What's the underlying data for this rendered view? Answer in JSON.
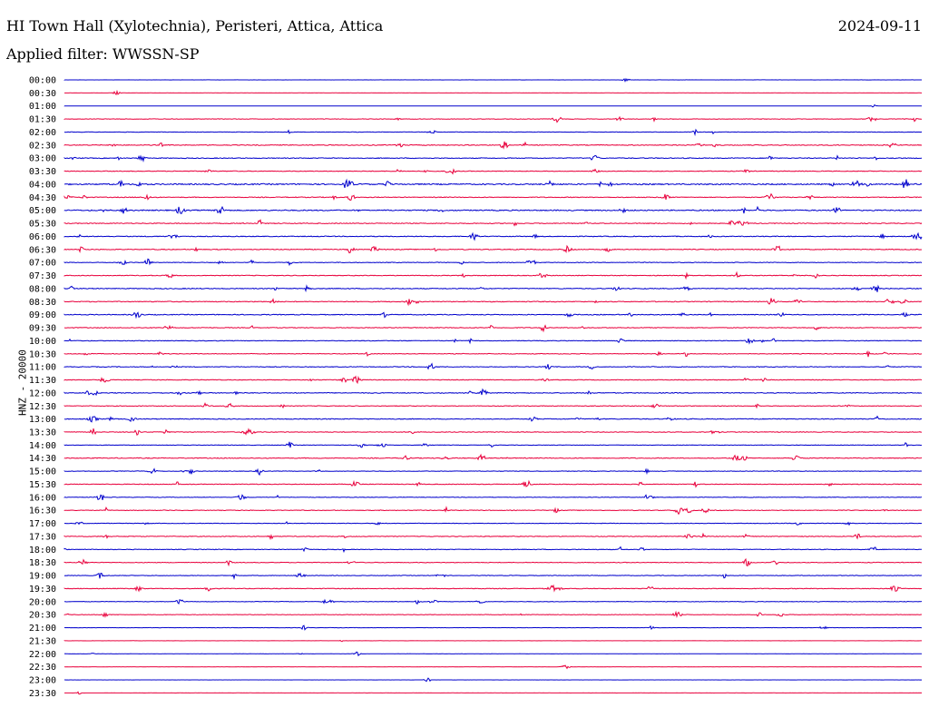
{
  "header": {
    "station": "HI Town Hall (Xylotechnia), Peristeri, Attica, Attica",
    "date": "2024-09-11",
    "filter": "Applied filter: WWSSN-SP"
  },
  "chart_data": {
    "type": "line",
    "ylabel": "HNZ - 20000",
    "rows": [
      "00:00",
      "00:30",
      "01:00",
      "01:30",
      "02:00",
      "02:30",
      "03:00",
      "03:30",
      "04:00",
      "04:30",
      "05:00",
      "05:30",
      "06:00",
      "06:30",
      "07:00",
      "07:30",
      "08:00",
      "08:30",
      "09:00",
      "09:30",
      "10:00",
      "10:30",
      "11:00",
      "11:30",
      "12:00",
      "12:30",
      "13:00",
      "13:30",
      "14:00",
      "14:30",
      "15:00",
      "15:30",
      "16:00",
      "16:30",
      "17:00",
      "17:30",
      "18:00",
      "18:30",
      "19:00",
      "19:30",
      "20:00",
      "20:30",
      "21:00",
      "21:30",
      "22:00",
      "22:30",
      "23:00",
      "23:30"
    ],
    "colors": [
      "#0000cc",
      "#e8003c"
    ],
    "activity": [
      0.1,
      0.1,
      0.1,
      0.4,
      0.3,
      0.6,
      0.6,
      0.5,
      0.9,
      0.6,
      0.8,
      0.6,
      0.6,
      0.6,
      0.5,
      0.5,
      0.6,
      0.6,
      0.6,
      0.5,
      0.5,
      0.5,
      0.5,
      0.5,
      0.6,
      0.5,
      0.6,
      0.5,
      0.4,
      0.6,
      0.4,
      0.5,
      0.4,
      0.5,
      0.4,
      0.5,
      0.5,
      0.5,
      0.4,
      0.5,
      0.4,
      0.4,
      0.2,
      0.1,
      0.2,
      0.1,
      0.1,
      0.1
    ],
    "grid": false
  }
}
